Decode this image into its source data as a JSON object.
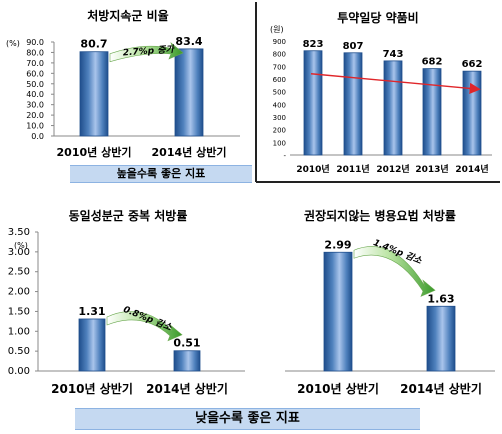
{
  "chart_data": [
    {
      "type": "bar",
      "title": "처방지속군 비율",
      "yunit": "(%)",
      "ylim": [
        0,
        90
      ],
      "yticks": [
        "0.0",
        "10.0",
        "20.0",
        "30.0",
        "40.0",
        "50.0",
        "60.0",
        "70.0",
        "80.0",
        "90.0"
      ],
      "categories": [
        "2010년 상반기",
        "2014년 상반기"
      ],
      "values": [
        80.7,
        83.4
      ],
      "value_labels": [
        "80.7",
        "83.4"
      ],
      "annotation": "2.7%p 증가",
      "footer": "높을수록 좋은 지표",
      "grid": false
    },
    {
      "type": "bar",
      "title": "투약일당 약품비",
      "yunit": "(원)",
      "ylim": [
        0,
        900
      ],
      "yticks": [
        "-",
        "100",
        "200",
        "300",
        "400",
        "500",
        "600",
        "700",
        "800",
        "900"
      ],
      "categories": [
        "2010년",
        "2011년",
        "2012년",
        "2013년",
        "2014년"
      ],
      "values": [
        823,
        807,
        743,
        682,
        662
      ],
      "value_labels": [
        "823",
        "807",
        "743",
        "682",
        "662"
      ],
      "trend": "decreasing",
      "grid": false
    },
    {
      "type": "bar",
      "title": "동일성분군 중복 처방률",
      "yunit": "(%)",
      "ylim": [
        0,
        3.5
      ],
      "yticks": [
        "0.00",
        "0.50",
        "1.00",
        "1.50",
        "2.00",
        "2.50",
        "3.00",
        "3.50"
      ],
      "categories": [
        "2010년 상반기",
        "2014년 상반기"
      ],
      "values": [
        1.31,
        0.51
      ],
      "value_labels": [
        "1.31",
        "0.51"
      ],
      "annotation": "0.8%p 감소",
      "grid": false
    },
    {
      "type": "bar",
      "title": "권장되지않는 병용요법 처방률",
      "ylim": [
        0,
        3.5
      ],
      "categories": [
        "2010년 상반기",
        "2014년 상반기"
      ],
      "values": [
        2.99,
        1.63
      ],
      "value_labels": [
        "2.99",
        "1.63"
      ],
      "annotation": "1.4%p 감소",
      "grid": false
    }
  ],
  "bottom_band": "낮을수록 좋은 지표",
  "colors": {
    "bar_dark": "#1f4e8c",
    "bar_mid": "#4f81bd",
    "bar_light": "#a9c4eb",
    "arrow_light": "#ffffff",
    "arrow_dark": "#3a9a2a",
    "trend_line": "#e0262a",
    "band_fill": "#c5d9f1"
  }
}
